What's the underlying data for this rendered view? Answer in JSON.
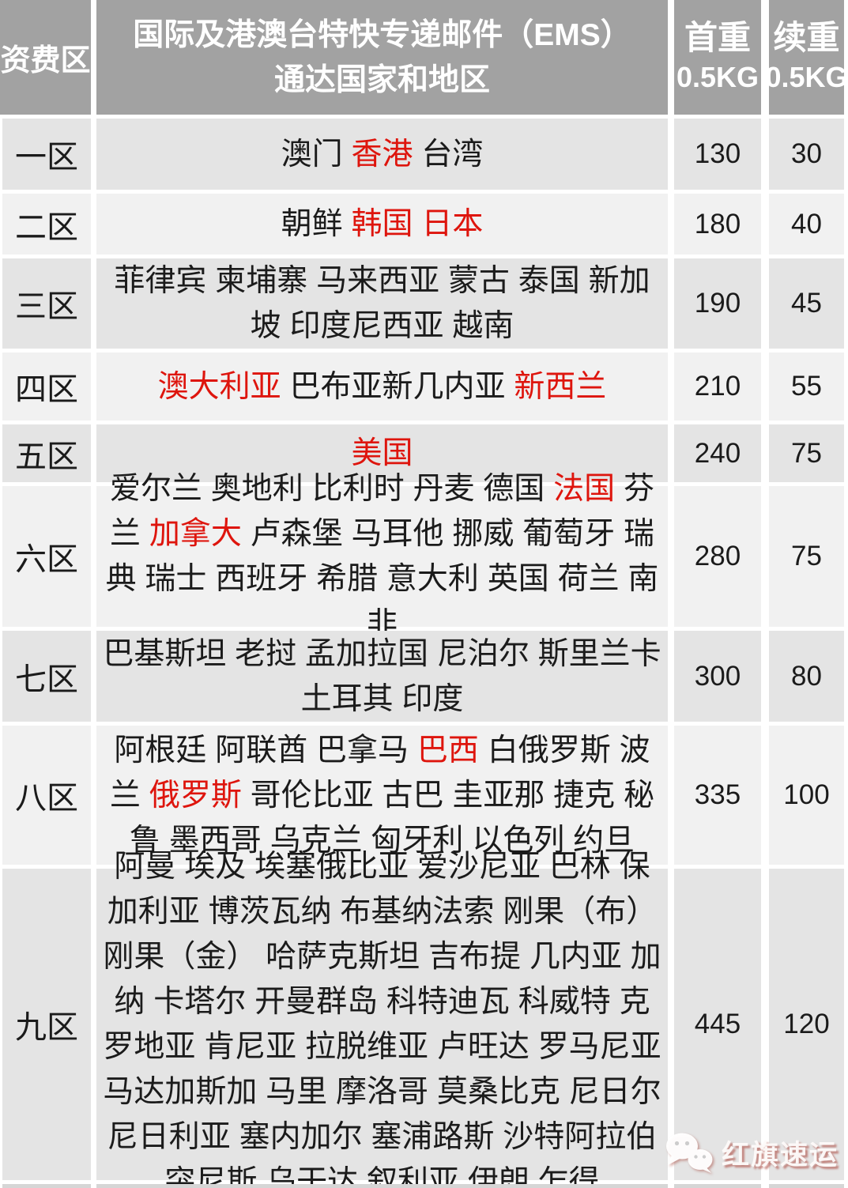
{
  "header": {
    "zone_col": "资费区",
    "countries_col_line1": "国际及港澳台特快专递邮件（EMS）",
    "countries_col_line2": "通达国家和地区",
    "first_weight_label": "首重",
    "first_weight_unit": "0.5KG",
    "additional_weight_label": "续重",
    "additional_weight_unit": "0.5KG"
  },
  "colors": {
    "header_bg": "#a2a2a2",
    "header_text": "#ffffff",
    "row_shade_dark": "#e4e4e4",
    "row_shade_light": "#f1f1f1",
    "body_text": "#1b1b1b",
    "highlight_red": "#de150d"
  },
  "rows": [
    {
      "zone": "一区",
      "segments": [
        {
          "text": "澳门 ",
          "red": false
        },
        {
          "text": "香港",
          "red": true
        },
        {
          "text": " 台湾",
          "red": false
        }
      ],
      "first_weight": "130",
      "additional_weight": "30"
    },
    {
      "zone": "二区",
      "segments": [
        {
          "text": "朝鲜 ",
          "red": false
        },
        {
          "text": "韩国 日本",
          "red": true
        }
      ],
      "first_weight": "180",
      "additional_weight": "40"
    },
    {
      "zone": "三区",
      "segments": [
        {
          "text": "菲律宾 柬埔寨 马来西亚 蒙古 泰国 新加坡 印度尼西亚 越南",
          "red": false
        }
      ],
      "first_weight": "190",
      "additional_weight": "45"
    },
    {
      "zone": "四区",
      "segments": [
        {
          "text": "澳大利亚",
          "red": true
        },
        {
          "text": " 巴布亚新几内亚 ",
          "red": false
        },
        {
          "text": "新西兰",
          "red": true
        }
      ],
      "first_weight": "210",
      "additional_weight": "55"
    },
    {
      "zone": "五区",
      "segments": [
        {
          "text": "美国",
          "red": true
        }
      ],
      "first_weight": "240",
      "additional_weight": "75"
    },
    {
      "zone": "六区",
      "segments": [
        {
          "text": "爱尔兰 奥地利 比利时 丹麦 德国 ",
          "red": false
        },
        {
          "text": "法国",
          "red": true
        },
        {
          "text": " 芬兰 ",
          "red": false
        },
        {
          "text": "加拿大",
          "red": true
        },
        {
          "text": " 卢森堡 马耳他 挪威 葡萄牙 瑞典 瑞士 西班牙 希腊 意大利 英国 荷兰 南非",
          "red": false
        }
      ],
      "first_weight": "280",
      "additional_weight": "75"
    },
    {
      "zone": "七区",
      "segments": [
        {
          "text": "巴基斯坦 老挝 孟加拉国 尼泊尔 斯里兰卡 土耳其 印度",
          "red": false
        }
      ],
      "first_weight": "300",
      "additional_weight": "80"
    },
    {
      "zone": "八区",
      "segments": [
        {
          "text": "阿根廷 阿联酋 巴拿马 ",
          "red": false
        },
        {
          "text": "巴西",
          "red": true
        },
        {
          "text": " 白俄罗斯 波兰 ",
          "red": false
        },
        {
          "text": "俄罗斯",
          "red": true
        },
        {
          "text": " 哥伦比亚 古巴 圭亚那 捷克 秘鲁 墨西哥 乌克兰 匈牙利 以色列 约旦",
          "red": false
        }
      ],
      "first_weight": "335",
      "additional_weight": "100"
    },
    {
      "zone": "九区",
      "segments": [
        {
          "text": "阿曼 埃及 埃塞俄比亚 爱沙尼亚 巴林 保加利亚 博茨瓦纳 布基纳法索 刚果（布） 刚果（金） 哈萨克斯坦 吉布提 几内亚 加纳 卡塔尔 开曼群岛 科特迪瓦 科威特 克罗地亚 肯尼亚 拉脱维亚 卢旺达 罗马尼亚 马达加斯加 马里 摩洛哥 莫桑比克 尼日尔 尼日利亚 塞内加尔 塞浦路斯 沙特阿拉伯 突尼斯 乌干达 叙利亚 伊朗 乍得",
          "red": false
        }
      ],
      "first_weight": "445",
      "additional_weight": "120"
    }
  ],
  "watermark": {
    "icon": "wechat-icon",
    "text": "红旗速运"
  }
}
